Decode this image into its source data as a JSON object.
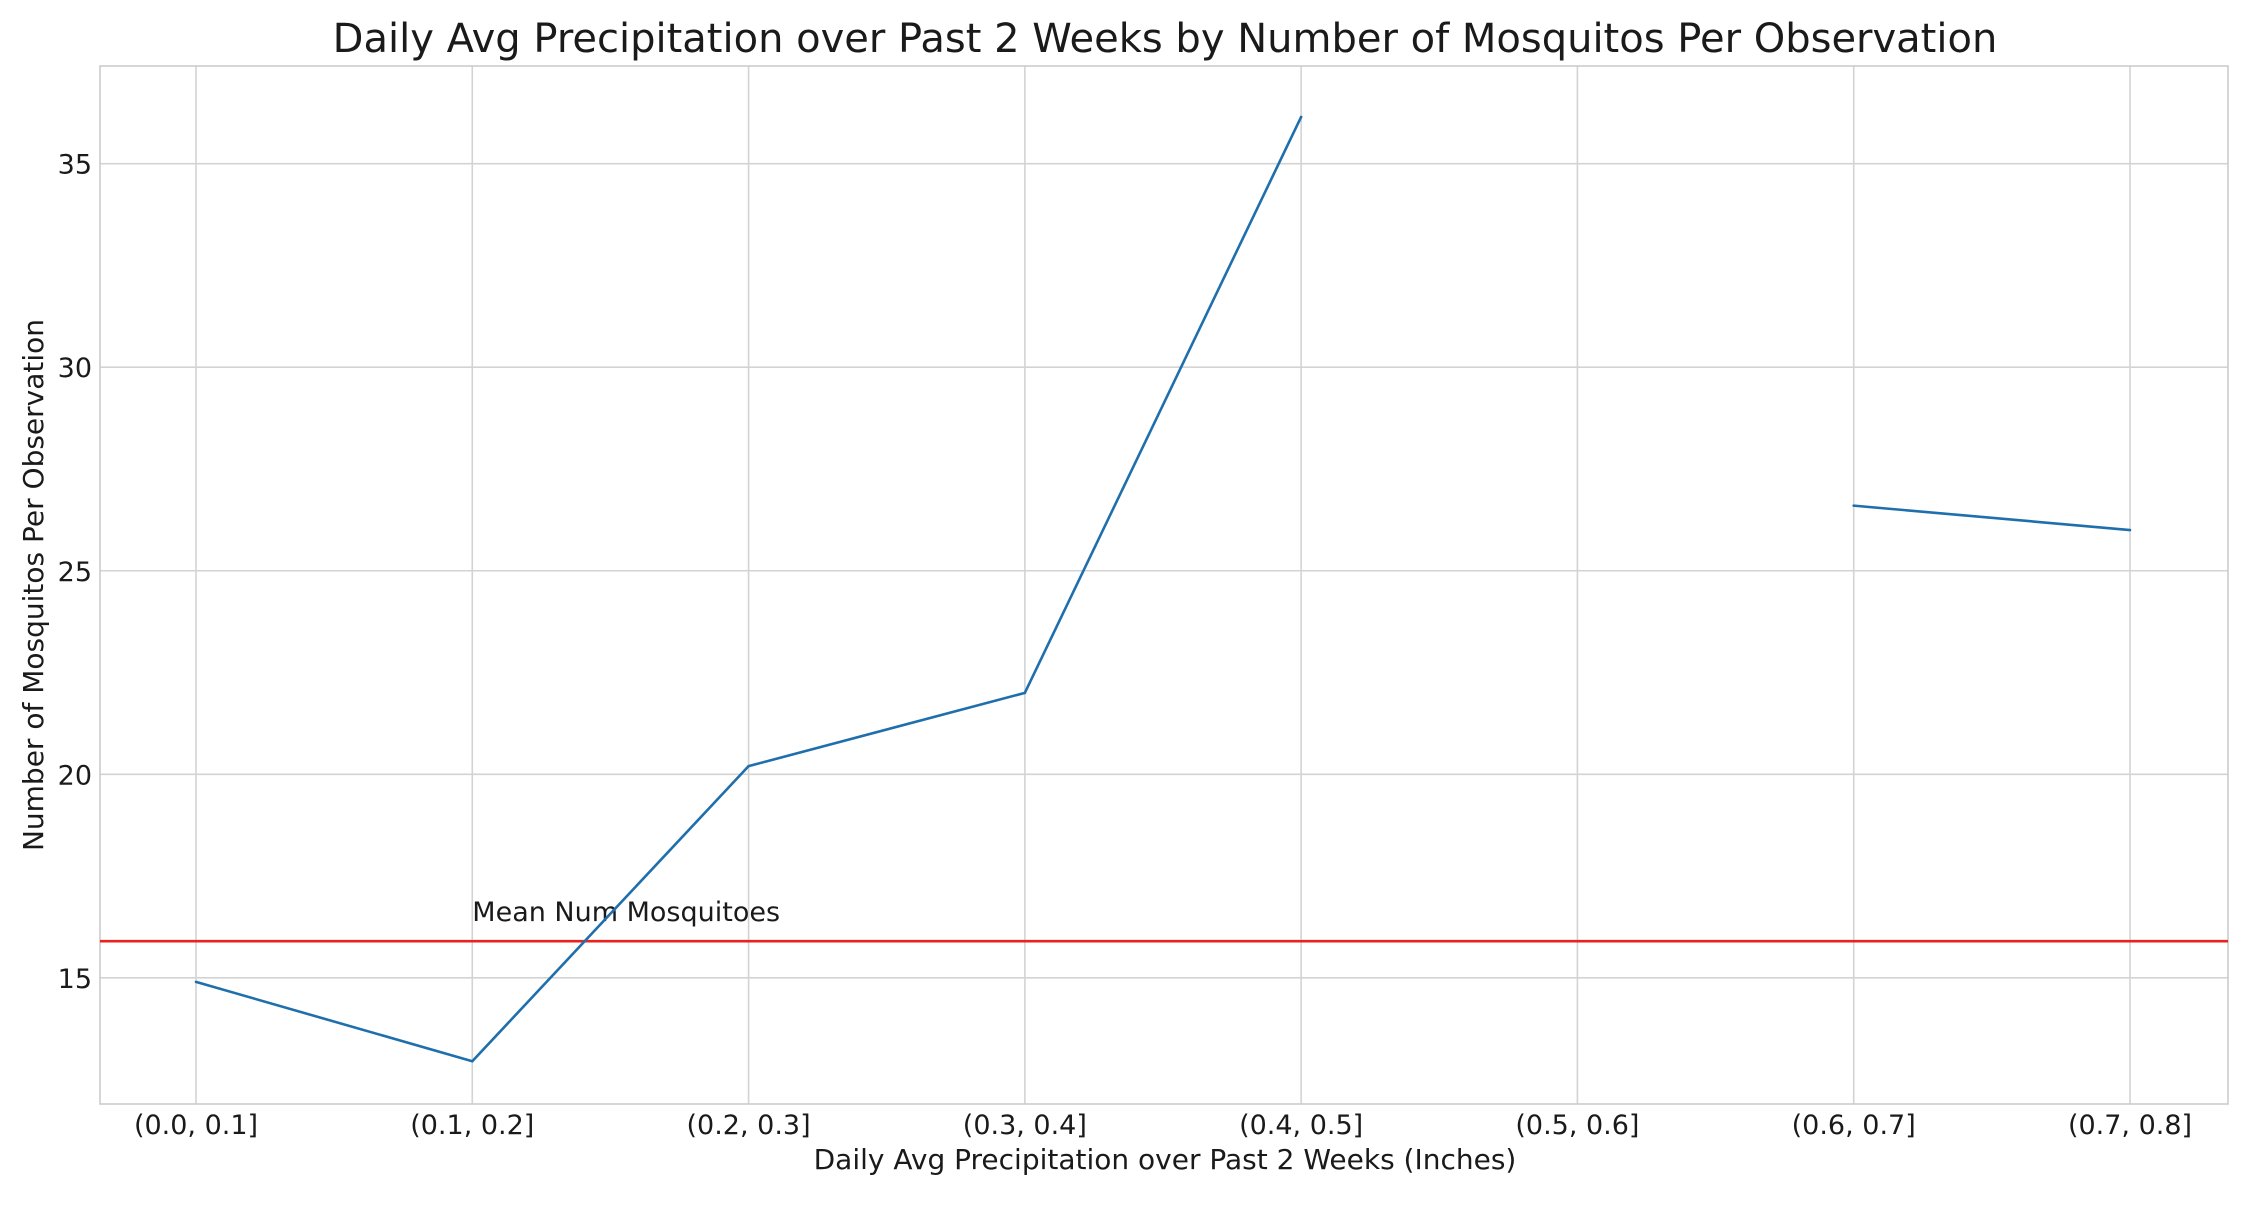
{
  "chart_data": {
    "type": "line",
    "title": "Daily Avg Precipitation over Past 2 Weeks by Number of Mosquitos Per Observation",
    "xlabel": "Daily Avg Precipitation over Past 2 Weeks (Inches)",
    "ylabel": "Number of Mosquitos Per Observation",
    "categories": [
      "(0.0, 0.1]",
      "(0.1, 0.2]",
      "(0.2, 0.3]",
      "(0.3, 0.4]",
      "(0.4, 0.5]",
      "(0.5, 0.6]",
      "(0.6, 0.7]",
      "(0.7, 0.8]"
    ],
    "series": [
      {
        "values": [
          14.9,
          12.95,
          20.2,
          22.0,
          36.15,
          null,
          26.6,
          26.0
        ],
        "color": "#1f6fad"
      }
    ],
    "ylim": [
      11.9,
      37.4
    ],
    "yticks": [
      15,
      20,
      25,
      30,
      35
    ],
    "grid": true,
    "reference_line": {
      "label": "Mean Num Mosquitoes",
      "value": 15.9,
      "color": "#e8231d"
    }
  }
}
